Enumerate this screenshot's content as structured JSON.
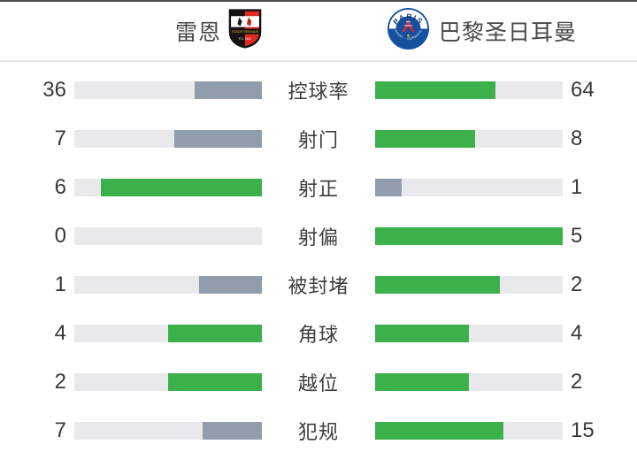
{
  "header": {
    "home": {
      "name": "雷恩"
    },
    "away": {
      "name": "巴黎圣日耳曼"
    }
  },
  "colors": {
    "green": "#3cb04a",
    "slate": "#919cac",
    "track": "#e9e9eb"
  },
  "stats": [
    {
      "label": "控球率",
      "home": {
        "value": 36,
        "pct": 36,
        "tone": "slate"
      },
      "away": {
        "value": 64,
        "pct": 64,
        "tone": "green"
      }
    },
    {
      "label": "射门",
      "home": {
        "value": 7,
        "pct": 46.7,
        "tone": "slate"
      },
      "away": {
        "value": 8,
        "pct": 53.3,
        "tone": "green"
      }
    },
    {
      "label": "射正",
      "home": {
        "value": 6,
        "pct": 85.7,
        "tone": "green"
      },
      "away": {
        "value": 1,
        "pct": 14.3,
        "tone": "slate"
      }
    },
    {
      "label": "射偏",
      "home": {
        "value": 0,
        "pct": 0,
        "tone": "none"
      },
      "away": {
        "value": 5,
        "pct": 100,
        "tone": "green"
      }
    },
    {
      "label": "被封堵",
      "home": {
        "value": 1,
        "pct": 33.3,
        "tone": "slate"
      },
      "away": {
        "value": 2,
        "pct": 66.7,
        "tone": "green"
      }
    },
    {
      "label": "角球",
      "home": {
        "value": 4,
        "pct": 50,
        "tone": "green"
      },
      "away": {
        "value": 4,
        "pct": 50,
        "tone": "green"
      }
    },
    {
      "label": "越位",
      "home": {
        "value": 2,
        "pct": 50,
        "tone": "green"
      },
      "away": {
        "value": 2,
        "pct": 50,
        "tone": "green"
      }
    },
    {
      "label": "犯规",
      "home": {
        "value": 7,
        "pct": 31.8,
        "tone": "slate"
      },
      "away": {
        "value": 15,
        "pct": 68.2,
        "tone": "green"
      }
    }
  ],
  "chart_data": {
    "type": "bar",
    "orientation": "horizontal-paired",
    "categories": [
      "控球率",
      "射门",
      "射正",
      "射偏",
      "被封堵",
      "角球",
      "越位",
      "犯规"
    ],
    "series": [
      {
        "name": "雷恩",
        "values": [
          36,
          7,
          6,
          0,
          1,
          4,
          2,
          7
        ]
      },
      {
        "name": "巴黎圣日耳曼",
        "values": [
          64,
          8,
          1,
          5,
          2,
          4,
          2,
          15
        ]
      }
    ],
    "legend_position": "top",
    "grid": false
  }
}
